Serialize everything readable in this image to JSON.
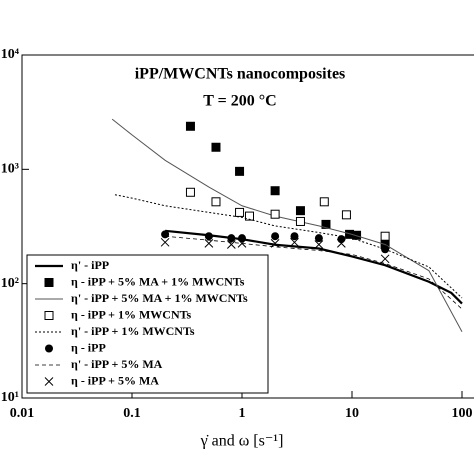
{
  "chart_data": {
    "type": "line",
    "title": "iPP/MWCNTs nanocomposites",
    "subtitle": "T = 200 °C",
    "x_label": "γ̇ and ω [s⁻¹]",
    "log_x": true,
    "log_y": true,
    "xlim": [
      0.01,
      100
    ],
    "ylim": [
      10,
      10000
    ],
    "xticks": [
      0.01,
      0.1,
      1,
      10,
      100
    ],
    "yticks": [
      {
        "value": 10,
        "label": "10¹"
      },
      {
        "value": 100,
        "label": "10²"
      },
      {
        "value": 1000,
        "label": "10³"
      },
      {
        "value": 10000,
        "label": "10⁴"
      }
    ],
    "legend": "lower left",
    "series": [
      {
        "name": "η' - iPP",
        "color": "#000000",
        "line": "solid",
        "width": 2.2,
        "x": [
          0.2,
          0.5,
          1,
          2,
          5,
          10,
          20,
          50,
          80,
          100
        ],
        "values": [
          290,
          265,
          245,
          219,
          203,
          173,
          145,
          104,
          83,
          67
        ]
      },
      {
        "name": "η - iPP + 5% MA + 1% MWCNTs",
        "color": "#000000",
        "marker": "filled-square",
        "x": [
          0.34,
          0.58,
          0.95,
          2,
          3.4,
          5.8,
          9.5,
          11,
          20
        ],
        "values": [
          2380,
          1560,
          960,
          650,
          435,
          330,
          270,
          265,
          220
        ]
      },
      {
        "name": "η' - iPP + 5% MA + 1% MWCNTs",
        "color": "#555555",
        "line": "solid",
        "width": 1,
        "x": [
          0.066,
          0.1,
          0.2,
          0.5,
          1,
          2,
          5,
          10,
          20,
          50,
          100
        ],
        "values": [
          2750,
          2000,
          1200,
          700,
          480,
          390,
          320,
          270,
          220,
          130,
          38
        ]
      },
      {
        "name": "η - iPP + 1% MWCNTs",
        "color": "#000000",
        "marker": "open-square",
        "x": [
          0.34,
          0.58,
          0.95,
          1.17,
          2,
          3.4,
          5.6,
          8.9,
          20
        ],
        "values": [
          630,
          520,
          420,
          390,
          405,
          350,
          520,
          400,
          260
        ]
      },
      {
        "name": "η' - iPP + 1% MWCNTs",
        "color": "#000000",
        "line": "dotted",
        "width": 1,
        "x": [
          0.07,
          0.1,
          0.2,
          0.5,
          1,
          2,
          5,
          10,
          20,
          50,
          100
        ],
        "values": [
          600,
          560,
          480,
          420,
          380,
          320,
          280,
          250,
          200,
          140,
          75
        ]
      },
      {
        "name": "η - iPP",
        "color": "#000000",
        "marker": "filled-circle",
        "x": [
          0.2,
          0.5,
          0.8,
          1,
          2,
          3,
          5,
          8,
          20
        ],
        "values": [
          270,
          260,
          250,
          250,
          260,
          260,
          250,
          245,
          200
        ]
      },
      {
        "name": "η' - iPP + 5% MA",
        "color": "#000000",
        "line": "dashed",
        "width": 0.8,
        "x": [
          0.2,
          0.5,
          1,
          2,
          5,
          10,
          20,
          50,
          100
        ],
        "values": [
          260,
          240,
          225,
          210,
          195,
          180,
          150,
          110,
          60
        ]
      },
      {
        "name": "η - iPP + 5% MA",
        "color": "#000000",
        "marker": "cross",
        "x": [
          0.2,
          0.5,
          0.8,
          1,
          2,
          3,
          5,
          8,
          20
        ],
        "values": [
          230,
          225,
          220,
          225,
          225,
          230,
          220,
          225,
          165
        ]
      }
    ]
  }
}
